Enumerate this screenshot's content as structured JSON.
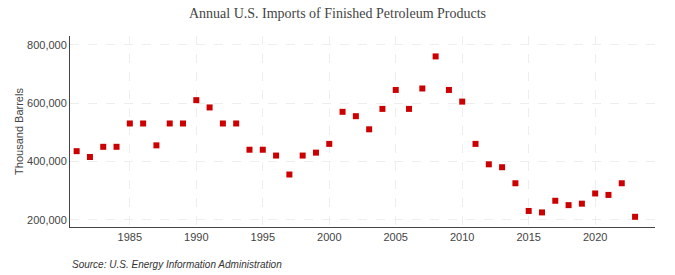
{
  "chart_data": {
    "type": "scatter",
    "title": "Annual U.S. Imports of Finished Petroleum Products",
    "ylabel": "Thousand Barrels",
    "annotations": [
      "Source: U.S. Energy Information Administration"
    ],
    "x": [
      1981,
      1982,
      1983,
      1984,
      1985,
      1986,
      1987,
      1988,
      1989,
      1990,
      1991,
      1992,
      1993,
      1994,
      1995,
      1996,
      1997,
      1998,
      1999,
      2000,
      2001,
      2002,
      2003,
      2004,
      2005,
      2006,
      2007,
      2008,
      2009,
      2010,
      2011,
      2012,
      2013,
      2014,
      2015,
      2016,
      2017,
      2018,
      2019,
      2020,
      2021,
      2022,
      2023
    ],
    "values": [
      435000,
      415000,
      450000,
      450000,
      530000,
      530000,
      455000,
      530000,
      530000,
      610000,
      585000,
      530000,
      530000,
      440000,
      440000,
      420000,
      355000,
      420000,
      430000,
      460000,
      570000,
      555000,
      510000,
      580000,
      645000,
      580000,
      650000,
      760000,
      645000,
      605000,
      460000,
      390000,
      380000,
      325000,
      230000,
      225000,
      265000,
      250000,
      255000,
      290000,
      285000,
      325000,
      210000
    ],
    "color": "#cc0000",
    "marker": "square",
    "xlim": [
      1980.5,
      2024.5
    ],
    "ylim": [
      175000,
      830000
    ],
    "xticks": [
      1985,
      1990,
      1995,
      2000,
      2005,
      2010,
      2015,
      2020
    ],
    "yticks": [
      {
        "value": 200000,
        "label": "200,000"
      },
      {
        "value": 400000,
        "label": "400,000"
      },
      {
        "value": 600000,
        "label": "600,000"
      },
      {
        "value": 800000,
        "label": "800,000"
      }
    ],
    "grid": true
  }
}
